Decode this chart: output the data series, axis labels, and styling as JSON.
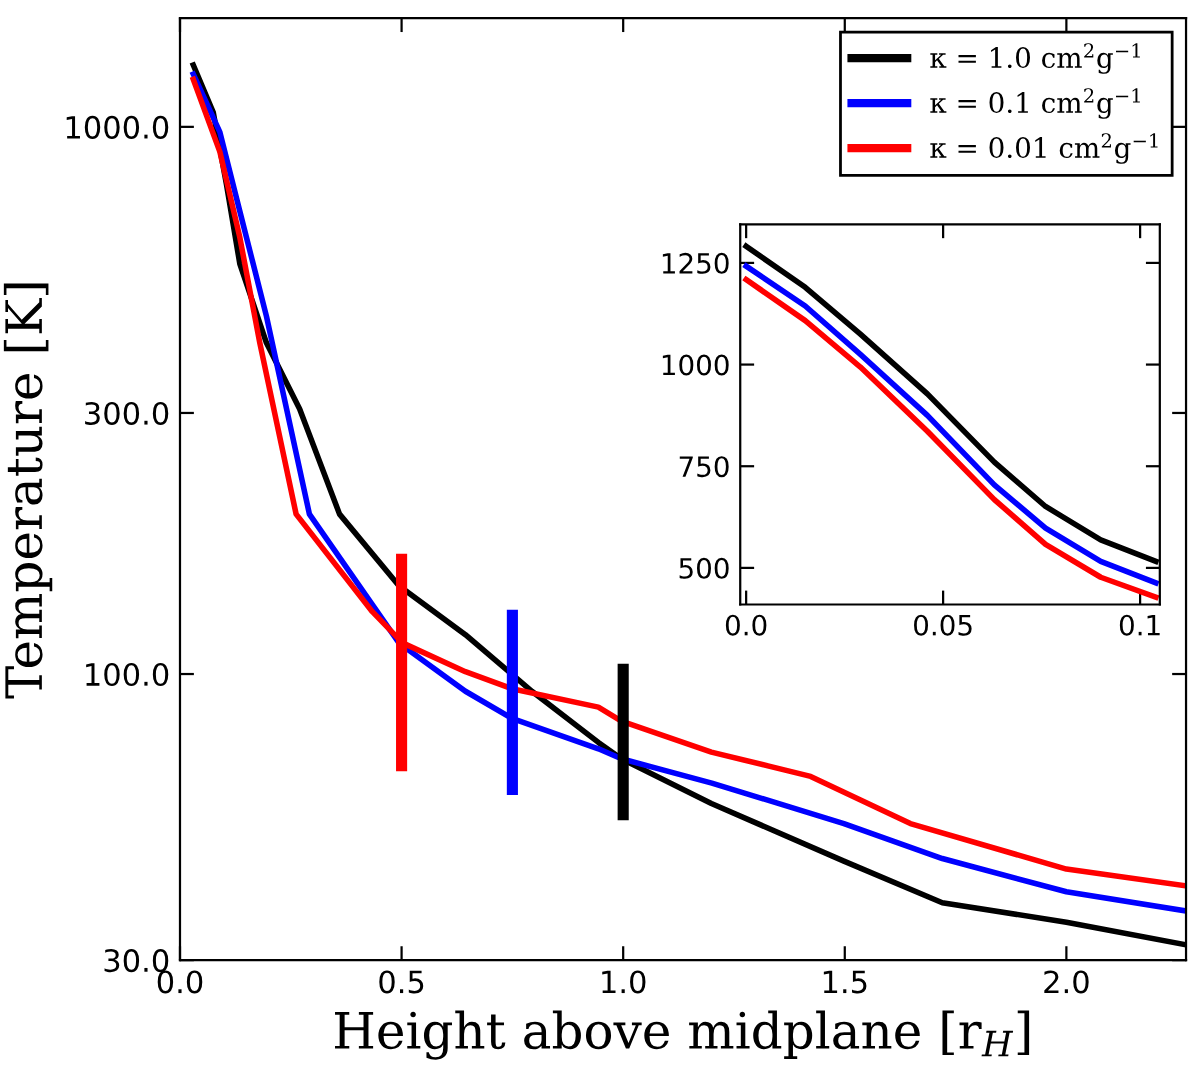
{
  "chart_data": [
    {
      "type": "line",
      "xlabel": "Height above midplane [r$_{H}$]",
      "ylabel": "Temperature [K]",
      "log": "y",
      "xlim": [
        0,
        2.27
      ],
      "ylim": [
        30,
        1580
      ],
      "xticks": [
        {
          "value": 0,
          "label": "0.0"
        },
        {
          "value": 0.5,
          "label": "0.5"
        },
        {
          "value": 1,
          "label": "1.0"
        },
        {
          "value": 1.5,
          "label": "1.5"
        },
        {
          "value": 2,
          "label": "2.0"
        }
      ],
      "yticks": [
        {
          "value": 30,
          "label": "30.0"
        },
        {
          "value": 100,
          "label": "100.0"
        },
        {
          "value": 300,
          "label": "300.0"
        },
        {
          "value": 1000,
          "label": "1000.0"
        }
      ],
      "legend": "top right",
      "grid": false,
      "series": [
        {
          "name": "κ = 1.0 cm$^{2}$g$^{−1}$",
          "color": "#000000",
          "x": [
            0.03,
            0.075,
            0.105,
            0.135,
            0.195,
            0.27,
            0.36,
            0.494,
            0.644,
            0.794,
            0.944,
            0.996,
            1.199,
            1.498,
            1.72,
            2.0,
            2.27
          ],
          "values": [
            1297,
            1063,
            784,
            562,
            403,
            305,
            196,
            145,
            118,
            93,
            75,
            70,
            58,
            45.5,
            38.2,
            35.2,
            32
          ]
        },
        {
          "name": "κ = 0.1 cm$^{2}$g$^{−1}$",
          "color": "#0000ff",
          "x": [
            0.03,
            0.09,
            0.135,
            0.195,
            0.292,
            0.494,
            0.644,
            0.749,
            0.944,
            0.996,
            1.2,
            1.498,
            1.72,
            2.0,
            2.27
          ],
          "values": [
            1248,
            978,
            701,
            451,
            196,
            114,
            93,
            83,
            73,
            70,
            63.2,
            53.3,
            46,
            40,
            36.9
          ]
        },
        {
          "name": "κ = 0.01 cm$^{2}$g$^{−1}$",
          "color": "#ff0000",
          "x": [
            0.03,
            0.09,
            0.135,
            0.18,
            0.262,
            0.434,
            0.502,
            0.644,
            0.749,
            0.944,
            0.996,
            1.199,
            1.423,
            1.648,
            2.0,
            2.27
          ],
          "values": [
            1221,
            900,
            628,
            403,
            196,
            130,
            114,
            101,
            94,
            87,
            82,
            72,
            65,
            53.3,
            44,
            41
          ]
        },
        {
          "color": "#ff0000",
          "x": [
            0.5,
            0.5
          ],
          "values": [
            68,
            162
          ]
        },
        {
          "color": "#0000ff",
          "x": [
            0.75,
            0.75
          ],
          "values": [
            61.5,
            128
          ]
        },
        {
          "color": "#000000",
          "x": [
            1.0,
            1.0
          ],
          "values": [
            55.3,
            102
          ]
        }
      ]
    },
    {
      "type": "line",
      "xlim": [
        -0.0015,
        0.105
      ],
      "ylim": [
        410,
        1345
      ],
      "xticks": [
        {
          "value": 0,
          "label": "0.0"
        },
        {
          "value": 0.05,
          "label": "0.05"
        },
        {
          "value": 0.1,
          "label": "0.1"
        }
      ],
      "yticks": [
        500,
        750,
        1000,
        1250
      ],
      "grid": false,
      "series": [
        {
          "color": "#000000",
          "x": [
            0.0,
            0.015,
            0.029,
            0.046,
            0.063,
            0.076,
            0.09,
            0.104
          ],
          "values": [
            1291,
            1190,
            1075,
            928,
            760,
            651,
            569,
            516
          ]
        },
        {
          "color": "#0000ff",
          "x": [
            0.0,
            0.015,
            0.029,
            0.046,
            0.063,
            0.076,
            0.09,
            0.104
          ],
          "values": [
            1242,
            1144,
            1025,
            875,
            704,
            598,
            516,
            463
          ]
        },
        {
          "color": "#ff0000",
          "x": [
            0.0,
            0.015,
            0.029,
            0.046,
            0.063,
            0.076,
            0.09,
            0.104
          ],
          "values": [
            1209,
            1108,
            994,
            836,
            668,
            558,
            477,
            428
          ]
        }
      ]
    }
  ]
}
